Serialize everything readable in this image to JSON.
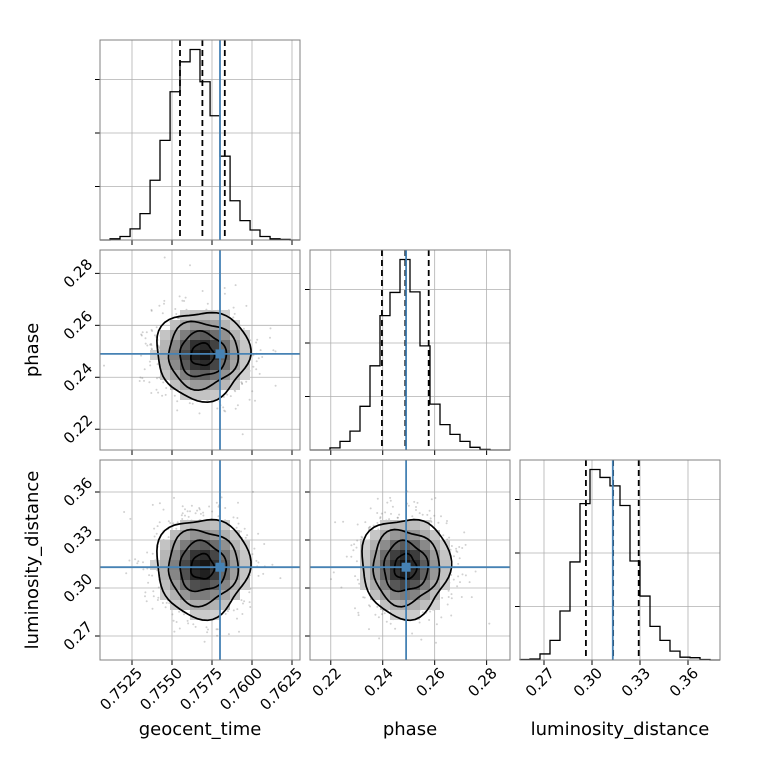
{
  "chart_data": {
    "type": "corner",
    "parameters": [
      "geocent_time",
      "phase",
      "luminosity_distance"
    ],
    "axis_labels": [
      "geocent_time",
      "phase",
      "luminosity_distance"
    ],
    "truth_color": "#4682b4",
    "truths": [
      0.758,
      0.249,
      0.313
    ],
    "ranges": [
      [
        0.7505,
        0.763
      ],
      [
        0.212,
        0.289
      ],
      [
        0.255,
        0.38
      ]
    ],
    "ticks": [
      {
        "values": [
          0.7525,
          0.755,
          0.7575,
          0.76,
          0.7625
        ],
        "labels": [
          "0.7525",
          "0.7550",
          "0.7575",
          "0.7600",
          "0.7625"
        ]
      },
      {
        "values": [
          0.22,
          0.24,
          0.26,
          0.28
        ],
        "labels": [
          "0.22",
          "0.24",
          "0.26",
          "0.28"
        ]
      },
      {
        "values": [
          0.27,
          0.3,
          0.33,
          0.36
        ],
        "labels": [
          "0.27",
          "0.30",
          "0.33",
          "0.36"
        ]
      }
    ],
    "grid": true,
    "histograms": [
      {
        "parameter": "geocent_time",
        "quantiles": [
          0.7555,
          0.7569,
          0.7583
        ],
        "bin_edges": [
          0.7505,
          0.75113,
          0.75175,
          0.75238,
          0.753,
          0.75363,
          0.75425,
          0.75488,
          0.7555,
          0.75613,
          0.75675,
          0.75738,
          0.758,
          0.75863,
          0.75925,
          0.75988,
          0.7605,
          0.76113,
          0.76175,
          0.76238,
          0.763
        ],
        "counts": [
          0,
          2,
          6,
          19,
          45,
          102,
          170,
          253,
          304,
          325,
          270,
          212,
          143,
          67,
          33,
          17,
          6,
          2,
          1,
          0
        ]
      },
      {
        "parameter": "phase",
        "quantiles": [
          0.2397,
          0.2487,
          0.2577
        ],
        "bin_edges": [
          0.212,
          0.21585,
          0.2197,
          0.22355,
          0.2274,
          0.23125,
          0.2351,
          0.23895,
          0.2428,
          0.24665,
          0.2505,
          0.25435,
          0.2582,
          0.26205,
          0.2659,
          0.26975,
          0.2736,
          0.27745,
          0.2813,
          0.28515,
          0.289
        ],
        "counts": [
          0,
          0,
          4,
          16,
          35,
          81,
          156,
          249,
          292,
          353,
          293,
          193,
          85,
          47,
          29,
          16,
          5,
          1,
          0,
          0
        ]
      },
      {
        "parameter": "luminosity_distance",
        "quantiles": [
          0.2962,
          0.3132,
          0.3292
        ],
        "bin_edges": [
          0.255,
          0.26125,
          0.2675,
          0.27375,
          0.28,
          0.28625,
          0.2925,
          0.29875,
          0.305,
          0.31125,
          0.3175,
          0.32375,
          0.33,
          0.33625,
          0.3425,
          0.34875,
          0.355,
          0.36125,
          0.3675,
          0.37375,
          0.38
        ],
        "counts": [
          1,
          2,
          13,
          42,
          105,
          210,
          335,
          408,
          391,
          373,
          331,
          212,
          137,
          72,
          42,
          19,
          6,
          5,
          1,
          0
        ]
      }
    ],
    "pairs": [
      {
        "x": "geocent_time",
        "y": "phase",
        "center": [
          0.7569,
          0.2487
        ],
        "sigma": [
          0.00145,
          0.0085
        ],
        "corr": -0.1
      },
      {
        "x": "geocent_time",
        "y": "luminosity_distance",
        "center": [
          0.7569,
          0.3132
        ],
        "sigma": [
          0.00145,
          0.0155
        ],
        "corr": 0.0
      },
      {
        "x": "phase",
        "y": "luminosity_distance",
        "center": [
          0.2487,
          0.3132
        ],
        "sigma": [
          0.0085,
          0.0155
        ],
        "corr": 0.0
      }
    ],
    "contour_levels_sigma": [
      0.5,
      1.0,
      1.5,
      2.0
    ]
  }
}
